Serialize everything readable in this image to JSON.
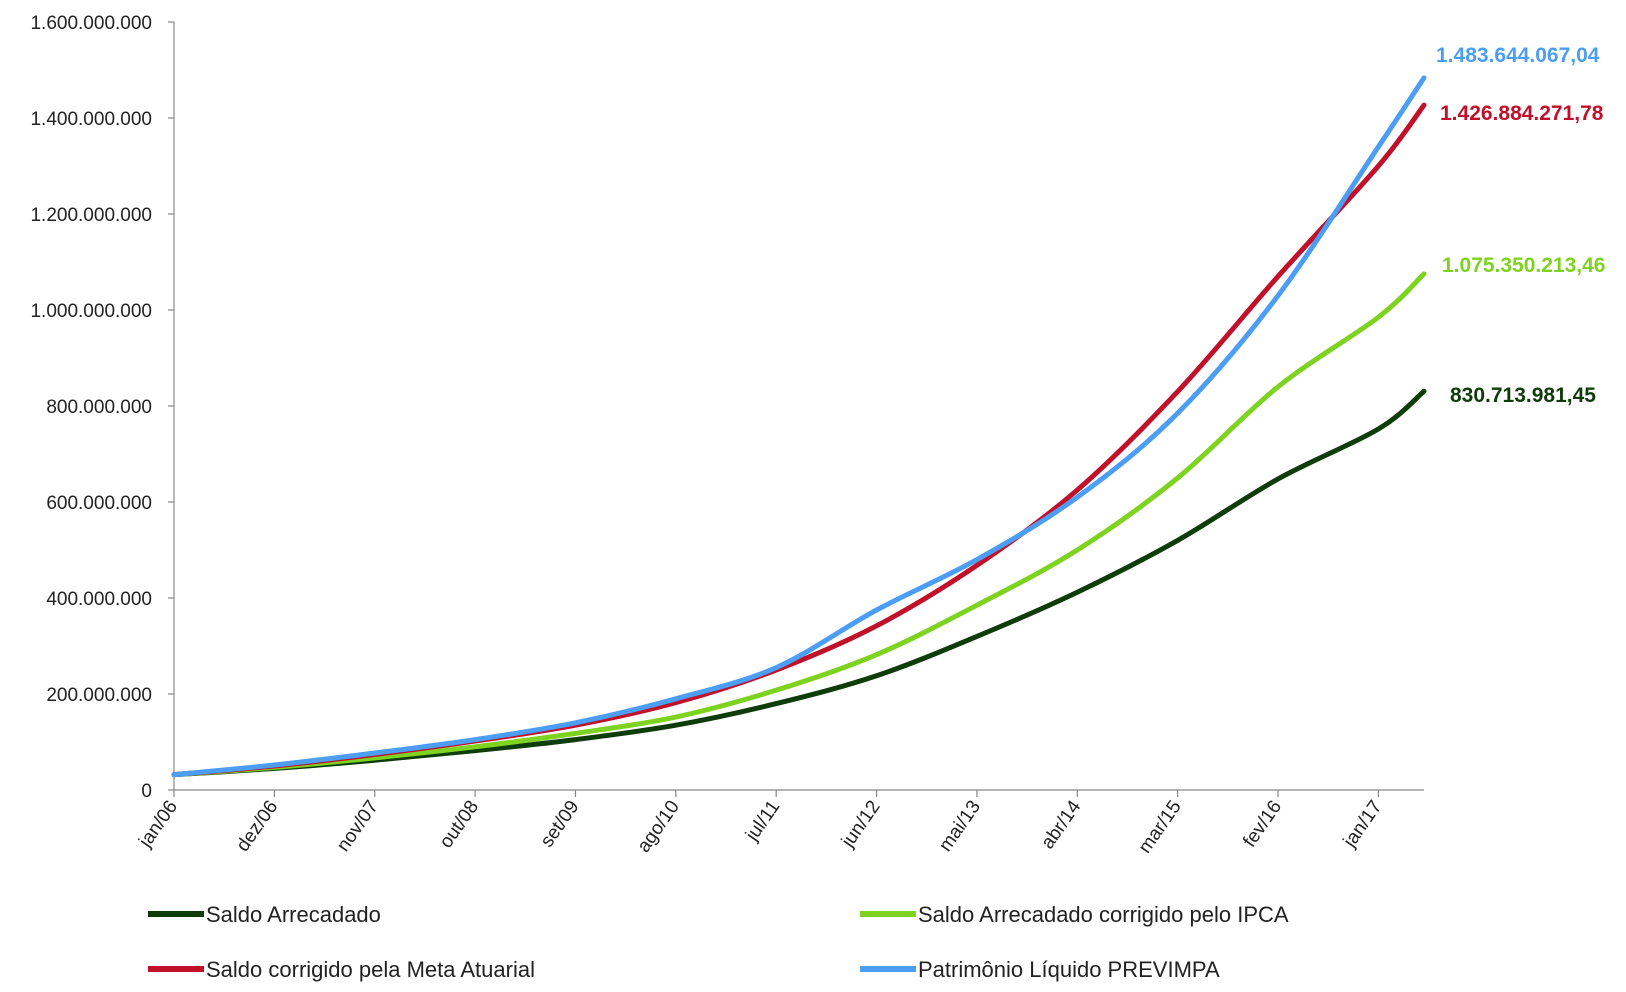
{
  "chart_data": {
    "type": "line",
    "title": "",
    "xlabel": "",
    "ylabel": "",
    "ylim": [
      0,
      1600000000
    ],
    "y_ticks": [
      0,
      200000000,
      400000000,
      600000000,
      800000000,
      1000000000,
      1200000000,
      1400000000,
      1600000000
    ],
    "y_tick_labels": [
      "0",
      "200.000.000",
      "400.000.000",
      "600.000.000",
      "800.000.000",
      "1.000.000.000",
      "1.200.000.000",
      "1.400.000.000",
      "1.600.000.000"
    ],
    "x_categories": [
      "jan/06",
      "dez/06",
      "nov/07",
      "out/08",
      "set/09",
      "ago/10",
      "jul/11",
      "jun/12",
      "mai/13",
      "abr/14",
      "mar/15",
      "fev/16",
      "jan/17"
    ],
    "x_range": [
      "jan/06",
      "jun/17"
    ],
    "grid": false,
    "legend": "bottom",
    "series": [
      {
        "name": "Saldo Arrecadado",
        "color": "#0f3d0a",
        "end_label": "830.713.981,45",
        "points": [
          [
            "jan/06",
            32000000
          ],
          [
            "dez/06",
            45000000
          ],
          [
            "nov/07",
            62000000
          ],
          [
            "out/08",
            82000000
          ],
          [
            "set/09",
            105000000
          ],
          [
            "ago/10",
            135000000
          ],
          [
            "jul/11",
            180000000
          ],
          [
            "jun/12",
            238000000
          ],
          [
            "mai/13",
            320000000
          ],
          [
            "abr/14",
            412000000
          ],
          [
            "mar/15",
            520000000
          ],
          [
            "fev/16",
            648000000
          ],
          [
            "jan/17",
            752000000
          ],
          [
            "jun/17",
            830713981.45
          ]
        ]
      },
      {
        "name": "Saldo Arrecadado corrigido pelo IPCA",
        "color": "#7ed321",
        "end_label": "1.075.350.213,46",
        "points": [
          [
            "jan/06",
            32000000
          ],
          [
            "dez/06",
            47000000
          ],
          [
            "nov/07",
            67000000
          ],
          [
            "out/08",
            90000000
          ],
          [
            "set/09",
            118000000
          ],
          [
            "ago/10",
            152000000
          ],
          [
            "jul/11",
            208000000
          ],
          [
            "jun/12",
            282000000
          ],
          [
            "mai/13",
            385000000
          ],
          [
            "abr/14",
            500000000
          ],
          [
            "mar/15",
            650000000
          ],
          [
            "fev/16",
            840000000
          ],
          [
            "jan/17",
            985000000
          ],
          [
            "jun/17",
            1075350213.46
          ]
        ]
      },
      {
        "name": "Saldo corrigido pela Meta Atuarial",
        "color": "#c0102a",
        "end_label": "1.426.884.271,78",
        "points": [
          [
            "jan/06",
            32000000
          ],
          [
            "dez/06",
            50000000
          ],
          [
            "nov/07",
            74000000
          ],
          [
            "out/08",
            102000000
          ],
          [
            "set/09",
            135000000
          ],
          [
            "ago/10",
            182000000
          ],
          [
            "jul/11",
            250000000
          ],
          [
            "jun/12",
            342000000
          ],
          [
            "mai/13",
            468000000
          ],
          [
            "abr/14",
            625000000
          ],
          [
            "mar/15",
            830000000
          ],
          [
            "fev/16",
            1070000000
          ],
          [
            "jan/17",
            1300000000
          ],
          [
            "jun/17",
            1426884271.78
          ]
        ]
      },
      {
        "name": "Patrimônio Líquido PREVIMPA",
        "color": "#4c9ef5",
        "end_label": "1.483.644.067,04",
        "points": [
          [
            "jan/06",
            32000000
          ],
          [
            "dez/06",
            52000000
          ],
          [
            "nov/07",
            77000000
          ],
          [
            "out/08",
            105000000
          ],
          [
            "set/09",
            140000000
          ],
          [
            "ago/10",
            190000000
          ],
          [
            "jul/11",
            255000000
          ],
          [
            "jun/12",
            375000000
          ],
          [
            "mai/13",
            480000000
          ],
          [
            "abr/14",
            610000000
          ],
          [
            "mar/15",
            785000000
          ],
          [
            "fev/16",
            1030000000
          ],
          [
            "jan/17",
            1340000000
          ],
          [
            "jun/17",
            1483644067.04
          ]
        ]
      }
    ]
  }
}
